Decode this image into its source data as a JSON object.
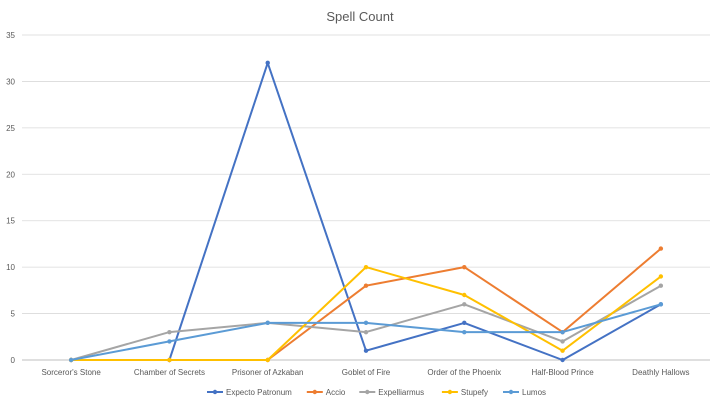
{
  "chart_data": {
    "type": "line",
    "title": "Spell Count",
    "xlabel": "",
    "ylabel": "",
    "ylim": [
      0,
      35
    ],
    "yticks": [
      0,
      5,
      10,
      15,
      20,
      25,
      30,
      35
    ],
    "grid": true,
    "legend_position": "bottom",
    "categories": [
      "Sorceror's Stone",
      "Chamber of Secrets",
      "Prisoner of Azkaban",
      "Goblet of Fire",
      "Order of the Phoenix",
      "Half-Blood Prince",
      "Deathly Hallows"
    ],
    "series": [
      {
        "name": "Expecto Patronum",
        "color": "#4472c4",
        "values": [
          0,
          0,
          32,
          1,
          4,
          0,
          6
        ]
      },
      {
        "name": "Accio",
        "color": "#ed7d31",
        "values": [
          0,
          0,
          0,
          8,
          10,
          3,
          12
        ]
      },
      {
        "name": "Expelliarmus",
        "color": "#a5a5a5",
        "values": [
          0,
          3,
          4,
          3,
          6,
          2,
          8
        ]
      },
      {
        "name": "Stupefy",
        "color": "#ffc000",
        "values": [
          0,
          0,
          0,
          10,
          7,
          1,
          9
        ]
      },
      {
        "name": "Lumos",
        "color": "#5b9bd5",
        "values": [
          0,
          2,
          4,
          4,
          3,
          3,
          6
        ]
      }
    ]
  }
}
